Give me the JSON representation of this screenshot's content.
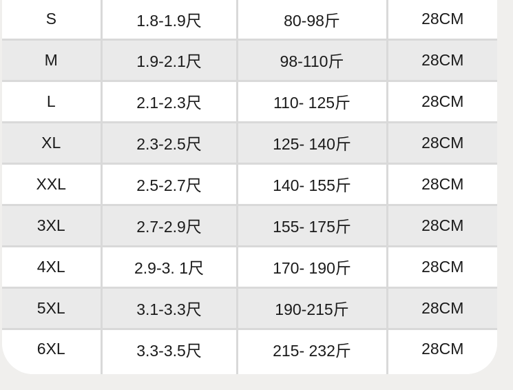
{
  "colors": {
    "page_background": "#f0efed",
    "card_background": "#ffffff",
    "row_alt": "#eaeaea",
    "divider": "#d9d9d9",
    "text": "#1a1a1a"
  },
  "chart_data": {
    "type": "table",
    "title": "",
    "grid": "on",
    "rows": [
      [
        "S",
        "1.8-1.9尺",
        "80-98斤",
        "28CM"
      ],
      [
        "M",
        "1.9-2.1尺",
        "98-110斤",
        "28CM"
      ],
      [
        "L",
        "2.1-2.3尺",
        "110- 125斤",
        "28CM"
      ],
      [
        "XL",
        "2.3-2.5尺",
        "125- 140斤",
        "28CM"
      ],
      [
        "XXL",
        "2.5-2.7尺",
        "140- 155斤",
        "28CM"
      ],
      [
        "3XL",
        "2.7-2.9尺",
        "155- 175斤",
        "28CM"
      ],
      [
        "4XL",
        "2.9-3. 1尺",
        "170- 190斤",
        "28CM"
      ],
      [
        "5XL",
        "3.1-3.3尺",
        "190-215斤",
        "28CM"
      ],
      [
        "6XL",
        "3.3-3.5尺",
        "215- 232斤",
        "28CM"
      ]
    ]
  }
}
